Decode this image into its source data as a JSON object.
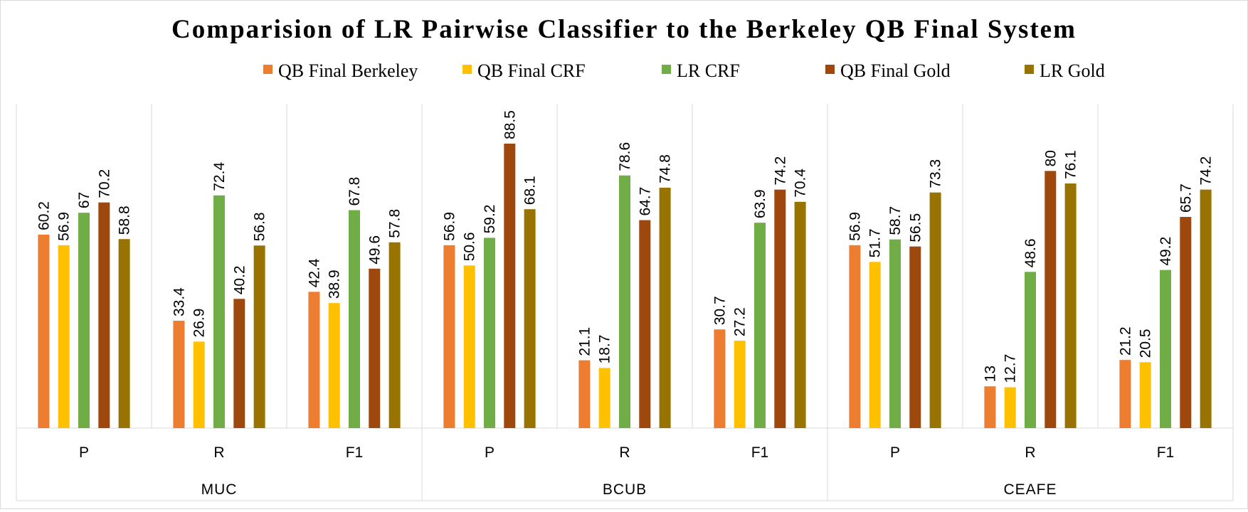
{
  "chart_data": {
    "type": "bar",
    "title": "Comparision of LR Pairwise Classifier to the Berkeley QB Final System",
    "xlabel": "",
    "ylabel": "",
    "ylim": [
      0,
      100
    ],
    "grid": false,
    "legend_position": "top",
    "groups": [
      {
        "label": "MUC",
        "categories": [
          "P",
          "R",
          "F1"
        ]
      },
      {
        "label": "BCUB",
        "categories": [
          "P",
          "R",
          "F1"
        ]
      },
      {
        "label": "CEAFE",
        "categories": [
          "P",
          "R",
          "F1"
        ]
      }
    ],
    "series": [
      {
        "name": "QB Final Berkeley",
        "color": "#ed7d31",
        "values": [
          60.2,
          33.4,
          42.4,
          56.9,
          21.1,
          30.7,
          56.9,
          13,
          21.2
        ]
      },
      {
        "name": "QB Final CRF",
        "color": "#ffc000",
        "values": [
          56.9,
          26.9,
          38.9,
          50.6,
          18.7,
          27.2,
          51.7,
          12.7,
          20.5
        ]
      },
      {
        "name": "LR CRF",
        "color": "#70ad47",
        "values": [
          67,
          72.4,
          67.8,
          59.2,
          78.6,
          63.9,
          58.7,
          48.6,
          49.2
        ]
      },
      {
        "name": "QB Final Gold",
        "color": "#9e480e",
        "values": [
          70.2,
          40.2,
          49.6,
          88.5,
          64.7,
          74.2,
          56.5,
          80,
          65.7
        ]
      },
      {
        "name": "LR Gold",
        "color": "#997300",
        "values": [
          58.8,
          56.8,
          57.8,
          68.1,
          74.8,
          70.4,
          73.3,
          76.1,
          74.2
        ]
      }
    ]
  }
}
